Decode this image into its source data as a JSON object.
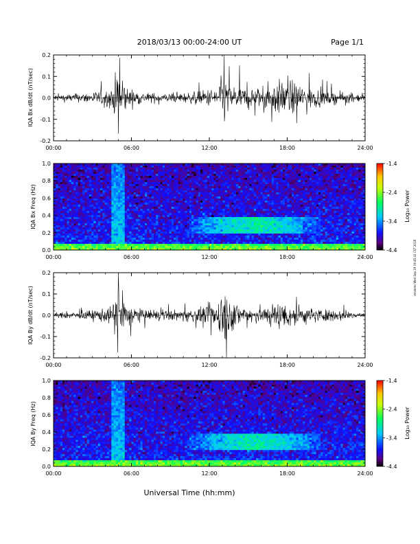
{
  "header": {
    "title": "2018/03/13  00:00-24:00 UT",
    "page": "Page 1/1"
  },
  "footer": {
    "xlabel": "Universal Time (hh:mm)",
    "side_stamp": "renderer Wed Sep 19 19:45:41 CST 2018"
  },
  "chart_data": [
    {
      "type": "line",
      "ylabel": "IQA Bx dB/dt (nT/sec)",
      "xlim": [
        0,
        24
      ],
      "ylim": [
        -0.2,
        0.2
      ],
      "yticks": [
        "0.2",
        "0.1",
        "0.0",
        "-0.1",
        "-0.2"
      ],
      "xticks": [
        "00:00",
        "06:00",
        "12:00",
        "18:00",
        "24:00"
      ],
      "series": [
        {
          "x_hours": [
            0,
            2,
            4.5,
            5.0,
            5.3,
            5.6,
            7,
            9,
            11,
            12.5,
            13.2,
            13.6,
            14.5,
            16,
            17.3,
            18.2,
            19.5,
            21,
            22.5,
            24
          ],
          "amplitude": [
            0.02,
            0.025,
            0.05,
            0.2,
            0.17,
            0.06,
            0.03,
            0.025,
            0.035,
            0.06,
            0.15,
            0.08,
            0.06,
            0.06,
            0.1,
            0.1,
            0.07,
            0.04,
            0.03,
            0.02
          ]
        }
      ]
    },
    {
      "type": "heatmap",
      "ylabel": "IQA Bx Freq (Hz)",
      "xlim": [
        0,
        24
      ],
      "ylim": [
        0,
        1.0
      ],
      "yticks": [
        "1.0",
        "0.8",
        "0.6",
        "0.4",
        "0.2",
        "0.0"
      ],
      "xticks": [
        "00:00",
        "06:00",
        "12:00",
        "18:00",
        "24:00"
      ],
      "colorbar": {
        "label": "Log₁₀ Power",
        "ticks": [
          "-1.4",
          "-2.4",
          "-3.4",
          "-4.4"
        ]
      },
      "features": [
        {
          "name": "low-frequency band",
          "freq_hz": [
            0,
            0.05
          ],
          "log_power": -2.6
        },
        {
          "name": "Pc1 event",
          "time_hours": [
            10.5,
            20.5
          ],
          "freq_hz": [
            0.2,
            0.38
          ],
          "log_power": -3.0
        },
        {
          "name": "impulse",
          "time_hours": [
            4.5,
            5.5
          ],
          "freq_hz": [
            0,
            1.0
          ],
          "log_power": -3.2
        }
      ]
    },
    {
      "type": "line",
      "ylabel": "IQA By dB/dt (nT/sec)",
      "xlim": [
        0,
        24
      ],
      "ylim": [
        -0.2,
        0.2
      ],
      "yticks": [
        "0.2",
        "0.1",
        "0.0",
        "-0.1",
        "-0.2"
      ],
      "xticks": [
        "00:00",
        "06:00",
        "12:00",
        "18:00",
        "24:00"
      ],
      "series": [
        {
          "x_hours": [
            0,
            2,
            4.5,
            5.0,
            5.3,
            5.6,
            7,
            9,
            11,
            12.5,
            13.2,
            13.6,
            14.5,
            16,
            17.3,
            18.2,
            19.5,
            21,
            22.5,
            24
          ],
          "amplitude": [
            0.015,
            0.02,
            0.05,
            0.2,
            0.18,
            0.07,
            0.03,
            0.03,
            0.04,
            0.07,
            0.2,
            0.09,
            0.06,
            0.05,
            0.08,
            0.07,
            0.05,
            0.035,
            0.025,
            0.015
          ]
        }
      ]
    },
    {
      "type": "heatmap",
      "ylabel": "IQA By Freq (Hz)",
      "xlim": [
        0,
        24
      ],
      "ylim": [
        0,
        1.0
      ],
      "yticks": [
        "1.0",
        "0.8",
        "0.6",
        "0.4",
        "0.2",
        "0.0"
      ],
      "xticks": [
        "00:00",
        "06:00",
        "12:00",
        "18:00",
        "24:00"
      ],
      "colorbar": {
        "label": "Log₁₀ Power",
        "ticks": [
          "-1.4",
          "-2.4",
          "-3.4",
          "-4.4"
        ]
      },
      "features": [
        {
          "name": "low-frequency band",
          "freq_hz": [
            0,
            0.05
          ],
          "log_power": -2.6
        },
        {
          "name": "Pc1 event",
          "time_hours": [
            10.5,
            20.5
          ],
          "freq_hz": [
            0.2,
            0.38
          ],
          "log_power": -3.0
        },
        {
          "name": "impulse",
          "time_hours": [
            4.5,
            5.5
          ],
          "freq_hz": [
            0,
            1.0
          ],
          "log_power": -3.2
        }
      ]
    }
  ]
}
